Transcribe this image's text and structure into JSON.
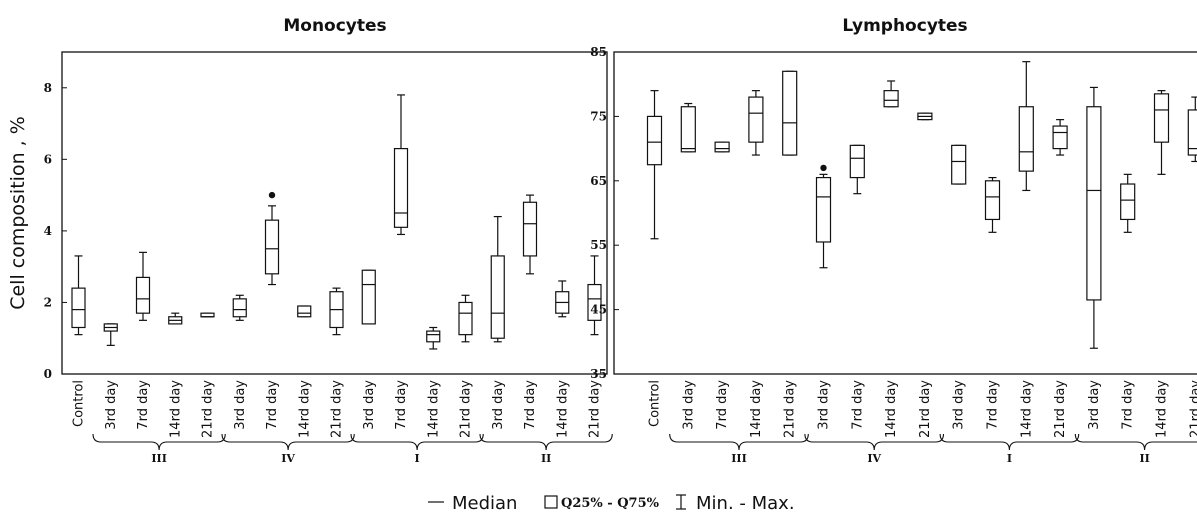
{
  "y_axis_label": "Cell composition , %",
  "legend": {
    "median_label": "Median",
    "box_label": "Q25% - Q75%",
    "whisker_label": "Min. - Max."
  },
  "chart_data": [
    {
      "type": "box",
      "title": "Monocytes",
      "ylim": [
        0,
        9
      ],
      "yticks": [
        0,
        2,
        4,
        6,
        8
      ],
      "categories": [
        "Control",
        "3rd day",
        "7rd day",
        "14rd day",
        "21rd day",
        "3rd day",
        "7rd day",
        "14rd day",
        "21rd day",
        "3rd day",
        "7rd day",
        "14rd day",
        "21rd day",
        "3rd day",
        "7rd day",
        "14rd day",
        "21rd day"
      ],
      "groups": [
        {
          "label": "III",
          "from": 1,
          "to": 4
        },
        {
          "label": "IV",
          "from": 5,
          "to": 8
        },
        {
          "label": "I",
          "from": 9,
          "to": 12
        },
        {
          "label": "II",
          "from": 13,
          "to": 16
        }
      ],
      "boxes": [
        {
          "min": 1.1,
          "q1": 1.3,
          "median": 1.8,
          "q3": 2.4,
          "max": 3.3
        },
        {
          "min": 0.8,
          "q1": 1.2,
          "median": 1.3,
          "q3": 1.4,
          "max": 1.4
        },
        {
          "min": 1.5,
          "q1": 1.7,
          "median": 2.1,
          "q3": 2.7,
          "max": 3.4
        },
        {
          "min": 1.4,
          "q1": 1.4,
          "median": 1.5,
          "q3": 1.6,
          "max": 1.7
        },
        {
          "min": 1.6,
          "q1": 1.6,
          "median": 1.6,
          "q3": 1.7,
          "max": 1.7
        },
        {
          "min": 1.5,
          "q1": 1.6,
          "median": 1.8,
          "q3": 2.1,
          "max": 2.2
        },
        {
          "min": 2.5,
          "q1": 2.8,
          "median": 3.5,
          "q3": 4.3,
          "max": 4.7,
          "outliers": [
            5.0
          ]
        },
        {
          "min": 1.6,
          "q1": 1.6,
          "median": 1.7,
          "q3": 1.9,
          "max": 1.9
        },
        {
          "min": 1.1,
          "q1": 1.3,
          "median": 1.8,
          "q3": 2.3,
          "max": 2.4
        },
        {
          "min": 1.4,
          "q1": 1.4,
          "median": 2.5,
          "q3": 2.9,
          "max": 2.9
        },
        {
          "min": 3.9,
          "q1": 4.1,
          "median": 4.5,
          "q3": 6.3,
          "max": 7.8
        },
        {
          "min": 0.7,
          "q1": 0.9,
          "median": 1.1,
          "q3": 1.2,
          "max": 1.3
        },
        {
          "min": 0.9,
          "q1": 1.1,
          "median": 1.7,
          "q3": 2.0,
          "max": 2.2
        },
        {
          "min": 0.9,
          "q1": 1.0,
          "median": 1.7,
          "q3": 3.3,
          "max": 4.4
        },
        {
          "min": 2.8,
          "q1": 3.3,
          "median": 4.2,
          "q3": 4.8,
          "max": 5.0
        },
        {
          "min": 1.6,
          "q1": 1.7,
          "median": 2.0,
          "q3": 2.3,
          "max": 2.6
        },
        {
          "min": 1.1,
          "q1": 1.5,
          "median": 2.1,
          "q3": 2.5,
          "max": 3.3
        }
      ]
    },
    {
      "type": "box",
      "title": "Lymphocytes",
      "ylim": [
        35,
        85
      ],
      "yticks": [
        35,
        45,
        55,
        65,
        75,
        85
      ],
      "categories": [
        "Control",
        "3rd day",
        "7rd day",
        "14rd day",
        "21rd day",
        "3rd day",
        "7rd day",
        "14rd day",
        "21rd day",
        "3rd day",
        "7rd day",
        "14rd day",
        "21rd day",
        "3rd day",
        "7rd day",
        "14rd day",
        "21rd day"
      ],
      "groups": [
        {
          "label": "III",
          "from": 1,
          "to": 4
        },
        {
          "label": "IV",
          "from": 5,
          "to": 8
        },
        {
          "label": "I",
          "from": 9,
          "to": 12
        },
        {
          "label": "II",
          "from": 13,
          "to": 16
        }
      ],
      "boxes": [
        {
          "min": 56,
          "q1": 67.5,
          "median": 71,
          "q3": 75,
          "max": 79
        },
        {
          "min": 69.5,
          "q1": 69.5,
          "median": 70,
          "q3": 76.5,
          "max": 77
        },
        {
          "min": 69.5,
          "q1": 69.5,
          "median": 70,
          "q3": 71,
          "max": 71
        },
        {
          "min": 69,
          "q1": 71,
          "median": 75.5,
          "q3": 78,
          "max": 79
        },
        {
          "min": 69,
          "q1": 69,
          "median": 74,
          "q3": 82,
          "max": 82
        },
        {
          "min": 51.5,
          "q1": 55.5,
          "median": 62.5,
          "q3": 65.5,
          "max": 66,
          "outliers": [
            67
          ]
        },
        {
          "min": 63,
          "q1": 65.5,
          "median": 68.5,
          "q3": 70.5,
          "max": 70.5
        },
        {
          "min": 76.5,
          "q1": 76.5,
          "median": 77.5,
          "q3": 79,
          "max": 80.5
        },
        {
          "min": 74.5,
          "q1": 74.5,
          "median": 75,
          "q3": 75.5,
          "max": 75.5
        },
        {
          "min": 64.5,
          "q1": 64.5,
          "median": 68,
          "q3": 70.5,
          "max": 70.5
        },
        {
          "min": 57,
          "q1": 59,
          "median": 62.5,
          "q3": 65,
          "max": 65.5
        },
        {
          "min": 63.5,
          "q1": 66.5,
          "median": 69.5,
          "q3": 76.5,
          "max": 83.5
        },
        {
          "min": 69,
          "q1": 70,
          "median": 72.5,
          "q3": 73.5,
          "max": 74.5
        },
        {
          "min": 39,
          "q1": 46.5,
          "median": 63.5,
          "q3": 76.5,
          "max": 79.5
        },
        {
          "min": 57,
          "q1": 59,
          "median": 62,
          "q3": 64.5,
          "max": 66
        },
        {
          "min": 66,
          "q1": 71,
          "median": 76,
          "q3": 78.5,
          "max": 79
        },
        {
          "min": 68,
          "q1": 69,
          "median": 70,
          "q3": 76,
          "max": 78
        }
      ]
    }
  ]
}
